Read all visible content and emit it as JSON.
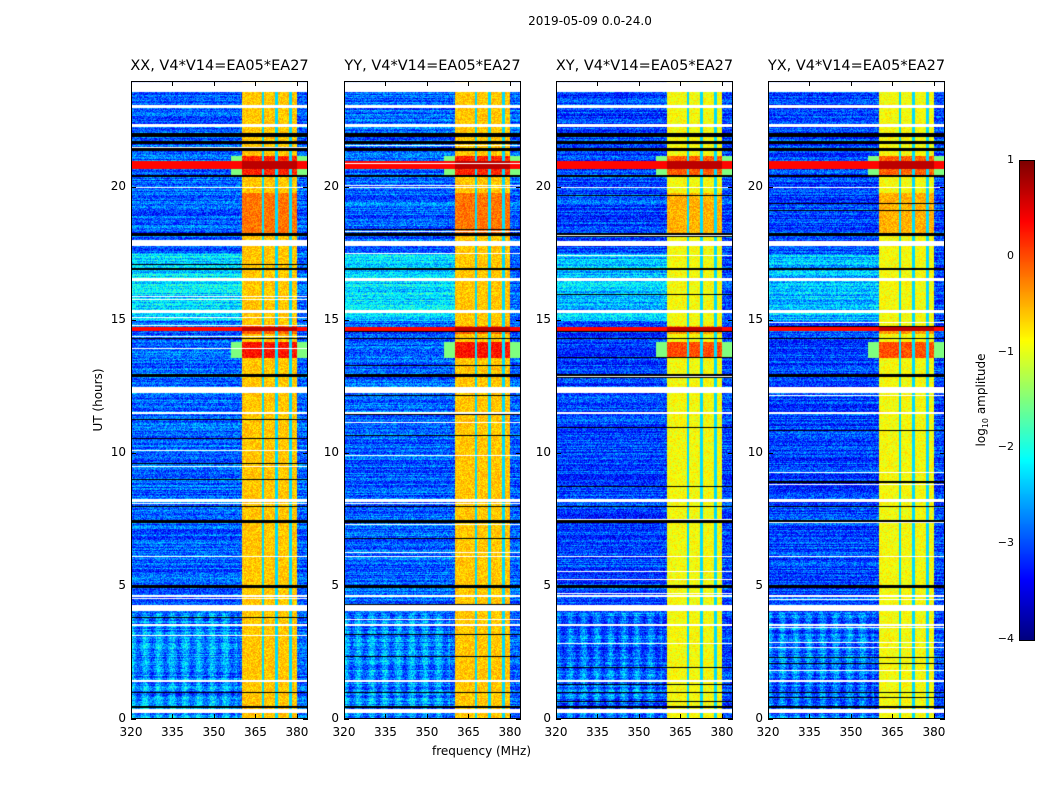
{
  "suptitle": "2019-05-09 0.0-24.0",
  "chart_data": {
    "type": "heatmap",
    "title": "2019-05-09 0.0-24.0",
    "panels": [
      {
        "title": "XX, V4*V14=EA05*EA27"
      },
      {
        "title": "YY, V4*V14=EA05*EA27"
      },
      {
        "title": "XY, V4*V14=EA05*EA27"
      },
      {
        "title": "YX, V4*V14=EA05*EA27"
      }
    ],
    "xlabel": "frequency (MHz)",
    "ylabel": "UT (hours)",
    "xlim": [
      320,
      384
    ],
    "ylim": [
      0,
      24
    ],
    "xticks": [
      "320",
      "335",
      "350",
      "365",
      "380"
    ],
    "xtick_values": [
      320,
      335,
      350,
      365,
      380
    ],
    "yticks": [
      "0",
      "5",
      "10",
      "15",
      "20"
    ],
    "ytick_values": [
      0,
      5,
      10,
      15,
      20
    ],
    "colorbar": {
      "label": "log10 amplitude",
      "label_main": "log",
      "label_sub": "10",
      "label_rest": " amplitude",
      "colormap": "jet",
      "clim": [
        -4,
        1
      ],
      "ticks": [
        "1",
        "0",
        "−1",
        "−2",
        "−3",
        "−4"
      ],
      "tick_values": [
        1,
        0,
        -1,
        -2,
        -3,
        -4
      ]
    },
    "background_level": -2.9,
    "rfi_band_mhz": [
      360,
      380
    ],
    "rfi_level": -0.3,
    "rfi_gaps_mhz": [
      367.5,
      372.5,
      377.5
    ],
    "flagged_white_hours": [
      [
        0.25,
        0.4
      ],
      [
        1.4,
        1.5
      ],
      [
        3.5,
        3.6
      ],
      [
        4.1,
        4.3
      ],
      [
        4.6,
        4.7
      ],
      [
        6.1,
        6.15
      ],
      [
        8.2,
        8.3
      ],
      [
        11.5,
        11.55
      ],
      [
        12.3,
        12.5
      ],
      [
        15.3,
        15.4
      ],
      [
        16.5,
        16.6
      ],
      [
        17.8,
        18.0
      ],
      [
        20.0,
        20.05
      ],
      [
        22.3,
        22.4
      ],
      [
        23.0,
        23.1
      ],
      [
        23.6,
        24.0
      ]
    ],
    "flagged_black_hours": [
      [
        0.45,
        0.5
      ],
      [
        1.0,
        1.05
      ],
      [
        4.95,
        5.05
      ],
      [
        7.4,
        7.5
      ],
      [
        8.0,
        8.05
      ],
      [
        12.9,
        13.0
      ],
      [
        14.3,
        14.35
      ],
      [
        16.9,
        17.0
      ],
      [
        18.2,
        18.3
      ],
      [
        20.4,
        20.5
      ],
      [
        21.4,
        21.5
      ],
      [
        21.65,
        21.75
      ],
      [
        21.9,
        22.05
      ]
    ],
    "high_amplitude_hours": [
      [
        13.6,
        14.2,
        0.6
      ],
      [
        14.5,
        14.8,
        0.2
      ],
      [
        20.5,
        21.2,
        0.5
      ],
      [
        18.2,
        19.8,
        0.1
      ]
    ]
  }
}
